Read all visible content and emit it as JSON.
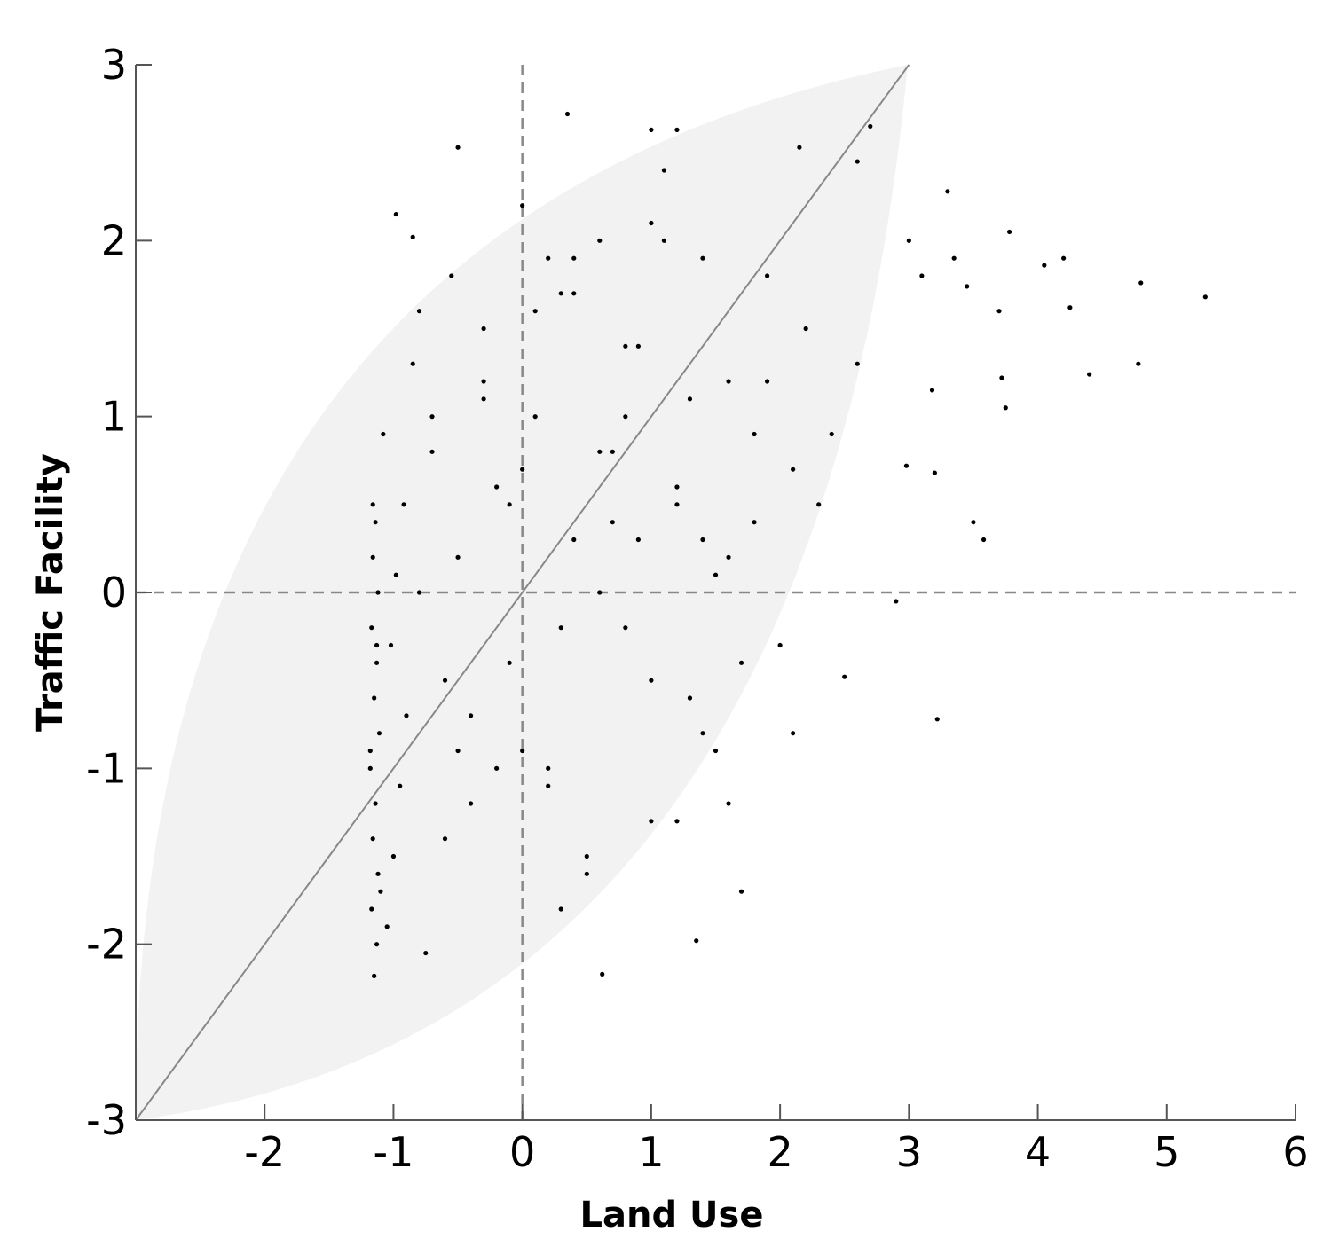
{
  "chart_data": {
    "type": "scatter",
    "xlabel": "Land Use",
    "ylabel": "Traffic Facility",
    "xlim": [
      -3,
      6
    ],
    "ylim": [
      -3,
      3
    ],
    "xticks": [
      -2,
      -1,
      0,
      1,
      2,
      3,
      4,
      5,
      6
    ],
    "yticks": [
      -3,
      -2,
      -1,
      0,
      1,
      2,
      3
    ],
    "color": "#000000",
    "x": [
      5.3,
      4.8,
      4.78,
      4.4,
      4.25,
      4.2,
      4.05,
      3.78,
      3.75,
      3.72,
      3.7,
      3.58,
      3.5,
      3.45,
      3.35,
      3.3,
      3.22,
      3.2,
      3.18,
      3.1,
      3.0,
      2.98,
      2.9,
      2.7,
      2.6,
      2.5,
      2.1,
      2.15,
      1.35,
      0.62,
      0.35,
      -0.5,
      -0.98,
      -0.85,
      1.0,
      1.2,
      -1.15,
      -1.13,
      -1.17,
      -1.12,
      -1.16,
      -1.14,
      -1.18,
      -1.11,
      -1.15,
      -1.13,
      -1.17,
      -1.12,
      -1.16,
      -1.14,
      -1.1,
      -1.18,
      -1.13,
      -1.16,
      -1.05,
      -1.0,
      -0.95,
      -0.9,
      -1.02,
      -0.98,
      -0.92,
      -1.08,
      -0.85,
      -0.8,
      -0.75,
      -0.7,
      -0.6,
      -0.55,
      -0.5,
      -0.4,
      -0.3,
      -0.2,
      -0.1,
      0.0,
      0.1,
      0.2,
      0.3,
      0.4,
      0.5,
      0.6,
      0.7,
      0.8,
      0.9,
      1.0,
      1.1,
      1.2,
      1.3,
      1.4,
      1.5,
      1.6,
      1.7,
      1.8,
      1.9,
      2.0,
      2.2,
      2.4,
      2.6,
      -0.6,
      -0.3,
      0.0,
      0.2,
      0.4,
      0.6,
      0.8,
      1.0,
      1.2,
      1.4,
      1.6,
      1.8,
      -0.4,
      0.1,
      0.5,
      0.9,
      1.3,
      1.7,
      2.1,
      -0.8,
      -0.2,
      0.3,
      0.7,
      1.1,
      1.5,
      1.9,
      2.3,
      0.0,
      0.4,
      0.8,
      1.2,
      1.6,
      -0.5,
      -0.1,
      0.3,
      0.6,
      1.0,
      1.4,
      -0.7,
      -0.3,
      0.2
    ],
    "values": [
      1.68,
      1.76,
      1.3,
      1.24,
      1.62,
      1.9,
      1.86,
      2.05,
      1.05,
      1.22,
      1.6,
      0.3,
      0.4,
      1.74,
      1.9,
      2.28,
      -0.72,
      0.68,
      1.15,
      1.8,
      2.0,
      0.72,
      -0.05,
      2.65,
      2.45,
      -0.48,
      -0.8,
      2.53,
      -1.98,
      -2.17,
      2.72,
      2.53,
      2.15,
      2.02,
      2.63,
      2.63,
      -2.18,
      -2.0,
      -1.8,
      -1.6,
      -1.4,
      -1.2,
      -1.0,
      -0.8,
      -0.6,
      -0.4,
      -0.2,
      0.0,
      0.2,
      0.4,
      -1.7,
      -0.9,
      -0.3,
      0.5,
      -1.9,
      -1.5,
      -1.1,
      -0.7,
      -0.3,
      0.1,
      0.5,
      0.9,
      1.3,
      1.6,
      -2.05,
      1.0,
      -0.5,
      1.8,
      0.2,
      -1.2,
      1.5,
      0.6,
      -0.4,
      2.2,
      1.0,
      -1.0,
      1.7,
      0.3,
      -1.6,
      2.0,
      0.8,
      -0.2,
      1.4,
      -1.3,
      2.4,
      0.5,
      -0.6,
      1.9,
      -0.9,
      1.2,
      -1.7,
      0.4,
      1.8,
      -0.3,
      1.5,
      0.9,
      1.3,
      -1.4,
      1.2,
      0.7,
      -1.1,
      1.9,
      0.0,
      1.0,
      -0.5,
      0.6,
      -0.8,
      0.2,
      0.9,
      -0.7,
      1.6,
      -1.5,
      0.3,
      1.1,
      -0.4,
      0.7,
      0.0,
      -1.0,
      -0.2,
      0.4,
      2.0,
      0.1,
      1.2,
      0.5,
      -0.9,
      1.7,
      1.4,
      -1.3,
      -1.2,
      -0.9,
      0.5,
      -1.8,
      0.8,
      2.1,
      0.3,
      0.8,
      1.1,
      1.9
    ]
  }
}
